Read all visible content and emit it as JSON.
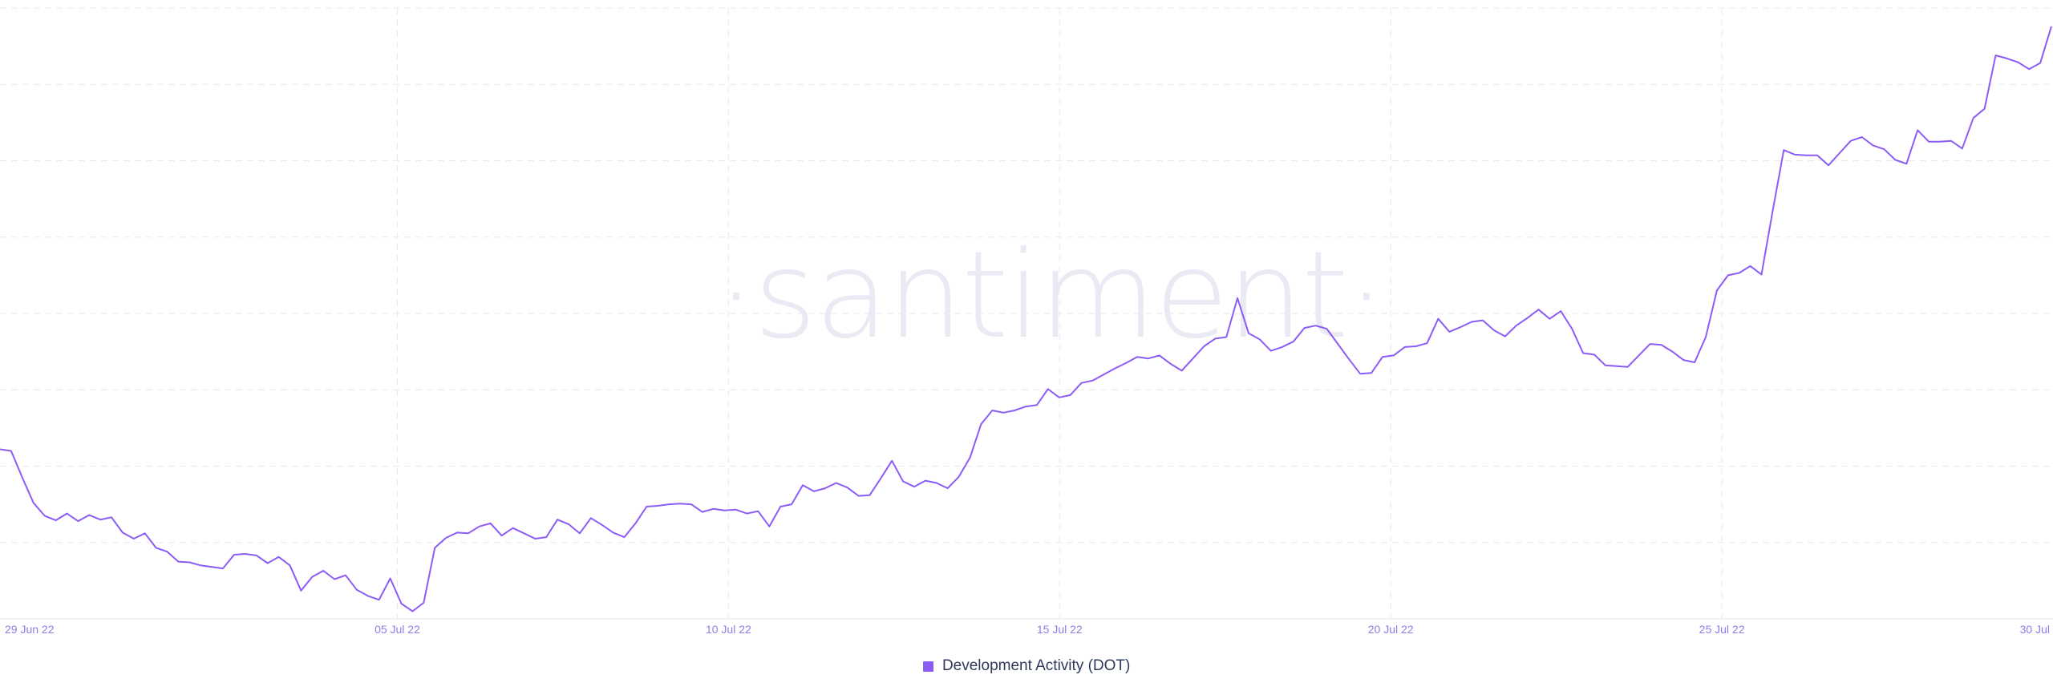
{
  "watermark": "·santiment·",
  "chart_data": {
    "type": "line",
    "title": "",
    "xlabel": "",
    "ylabel": "",
    "x_ticks": [
      "29 Jun 22",
      "05 Jul 22",
      "10 Jul 22",
      "15 Jul 22",
      "20 Jul 22",
      "25 Jul 22",
      "30 Jul"
    ],
    "x_start": "2022-06-29",
    "x_end": "2022-07-30",
    "ylim": [
      0,
      8
    ],
    "grid": true,
    "legend_position": "bottom-center",
    "series": [
      {
        "name": "Development Activity (DOT)",
        "color": "#8b5cf6",
        "values": [
          2.22,
          2.2,
          1.85,
          1.52,
          1.35,
          1.29,
          1.38,
          1.28,
          1.36,
          1.3,
          1.33,
          1.13,
          1.05,
          1.12,
          0.93,
          0.88,
          0.75,
          0.74,
          0.7,
          0.68,
          0.66,
          0.84,
          0.85,
          0.83,
          0.73,
          0.81,
          0.7,
          0.37,
          0.55,
          0.63,
          0.52,
          0.57,
          0.38,
          0.3,
          0.25,
          0.53,
          0.2,
          0.1,
          0.21,
          0.93,
          1.06,
          1.13,
          1.12,
          1.21,
          1.25,
          1.09,
          1.19,
          1.12,
          1.05,
          1.07,
          1.3,
          1.24,
          1.12,
          1.32,
          1.23,
          1.13,
          1.07,
          1.25,
          1.47,
          1.48,
          1.5,
          1.51,
          1.5,
          1.4,
          1.44,
          1.42,
          1.43,
          1.38,
          1.41,
          1.21,
          1.47,
          1.5,
          1.75,
          1.67,
          1.71,
          1.78,
          1.72,
          1.61,
          1.62,
          1.84,
          2.07,
          1.8,
          1.73,
          1.81,
          1.78,
          1.71,
          1.86,
          2.11,
          2.55,
          2.73,
          2.7,
          2.73,
          2.78,
          2.8,
          3.01,
          2.9,
          2.93,
          3.09,
          3.12,
          3.2,
          3.28,
          3.35,
          3.43,
          3.41,
          3.45,
          3.34,
          3.25,
          3.41,
          3.57,
          3.67,
          3.69,
          4.2,
          3.74,
          3.66,
          3.51,
          3.56,
          3.63,
          3.81,
          3.84,
          3.8,
          3.6,
          3.4,
          3.21,
          3.22,
          3.43,
          3.45,
          3.56,
          3.57,
          3.61,
          3.93,
          3.76,
          3.82,
          3.89,
          3.91,
          3.78,
          3.7,
          3.84,
          3.94,
          4.05,
          3.93,
          4.03,
          3.8,
          3.48,
          3.46,
          3.32,
          3.31,
          3.3,
          3.45,
          3.6,
          3.59,
          3.5,
          3.39,
          3.36,
          3.69,
          4.3,
          4.5,
          4.53,
          4.62,
          4.51,
          5.34,
          6.14,
          6.08,
          6.07,
          6.07,
          5.94,
          6.1,
          6.26,
          6.31,
          6.2,
          6.15,
          6.01,
          5.96,
          6.4,
          6.25,
          6.25,
          6.26,
          6.16,
          6.56,
          6.68,
          7.38,
          7.34,
          7.29,
          7.2,
          7.28,
          7.76
        ]
      }
    ]
  }
}
